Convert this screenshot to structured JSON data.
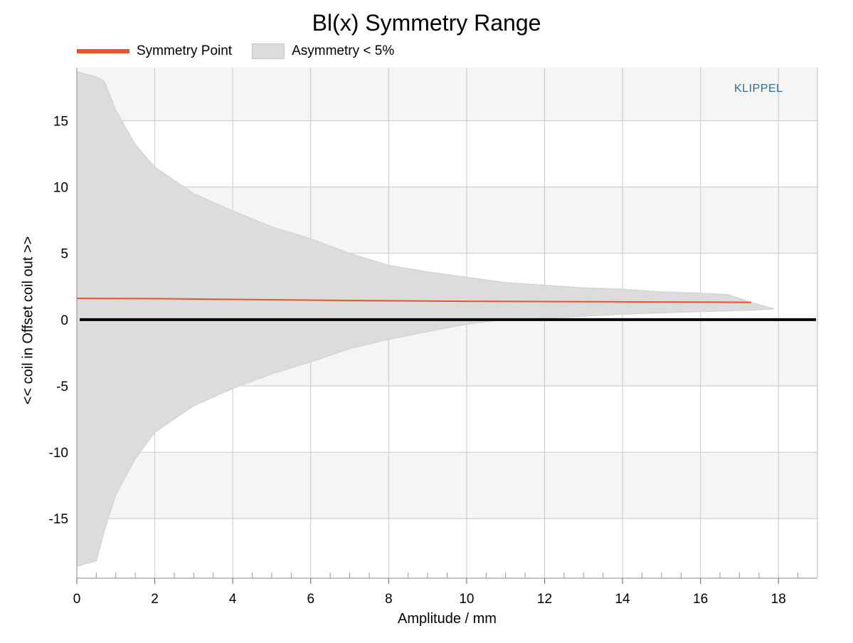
{
  "chart_data": {
    "type": "area",
    "title": "Bl(x) Symmetry Range",
    "xlabel": "Amplitude / mm",
    "ylabel": "<< coil in Offset coil out >>",
    "xlim": [
      0,
      19
    ],
    "ylim": [
      -19.5,
      19
    ],
    "x_ticks": [
      0,
      2,
      4,
      6,
      8,
      10,
      12,
      14,
      16,
      18
    ],
    "y_ticks": [
      15,
      10,
      5,
      0,
      -5,
      -10,
      -15
    ],
    "x_tick_labels": [
      "0",
      "2",
      "4",
      "6",
      "8",
      "10",
      "12",
      "14",
      "16",
      "18"
    ],
    "y_tick_labels": [
      "15",
      "10",
      "5",
      "0",
      "-5",
      "-10",
      "-15"
    ],
    "grid": true,
    "legend": {
      "position": "top-left",
      "entries": [
        {
          "label": "Symmetry Point",
          "kind": "line",
          "color": "#e8552a"
        },
        {
          "label": "Asymmetry < 5%",
          "kind": "area",
          "color": "#dcdcdc"
        }
      ]
    },
    "series": [
      {
        "name": "Symmetry Point",
        "kind": "line",
        "color": "#e8552a",
        "x": [
          0,
          2,
          4,
          6,
          8,
          10,
          12,
          14,
          16,
          17.3
        ],
        "y": [
          1.6,
          1.58,
          1.52,
          1.47,
          1.42,
          1.38,
          1.36,
          1.34,
          1.32,
          1.3
        ]
      },
      {
        "name": "Asymmetry < 5%",
        "kind": "band",
        "color": "#dcdcdc",
        "x": [
          0,
          0.5,
          0.7,
          1.0,
          1.5,
          2,
          3,
          4,
          5,
          6,
          7,
          8,
          9,
          10,
          11,
          12,
          13,
          14,
          15,
          16,
          16.7,
          17.3,
          17.9
        ],
        "upper": [
          18.7,
          18.3,
          18.0,
          15.8,
          13.2,
          11.5,
          9.5,
          8.2,
          7.0,
          6.1,
          5.0,
          4.1,
          3.6,
          3.2,
          2.8,
          2.6,
          2.4,
          2.3,
          2.1,
          2.0,
          1.9,
          1.3,
          0.8
        ],
        "lower": [
          -18.6,
          -18.2,
          -16.0,
          -13.2,
          -10.5,
          -8.5,
          -6.5,
          -5.2,
          -4.1,
          -3.2,
          -2.2,
          -1.5,
          -0.9,
          -0.35,
          0.0,
          0.1,
          0.25,
          0.4,
          0.5,
          0.6,
          0.65,
          0.7,
          0.8
        ]
      },
      {
        "name": "",
        "kind": "line",
        "color": "#000000",
        "x": [
          0,
          19
        ],
        "y": [
          0,
          0
        ]
      }
    ],
    "annotation": "KLIPPEL"
  },
  "colors": {
    "symmetry_line": "#e8552a",
    "band": "#dcdcdc",
    "zero_line": "#000000",
    "stripe": "#f5f5f5",
    "grid": "#c8c8c8",
    "watermark": "#2e6d96"
  }
}
